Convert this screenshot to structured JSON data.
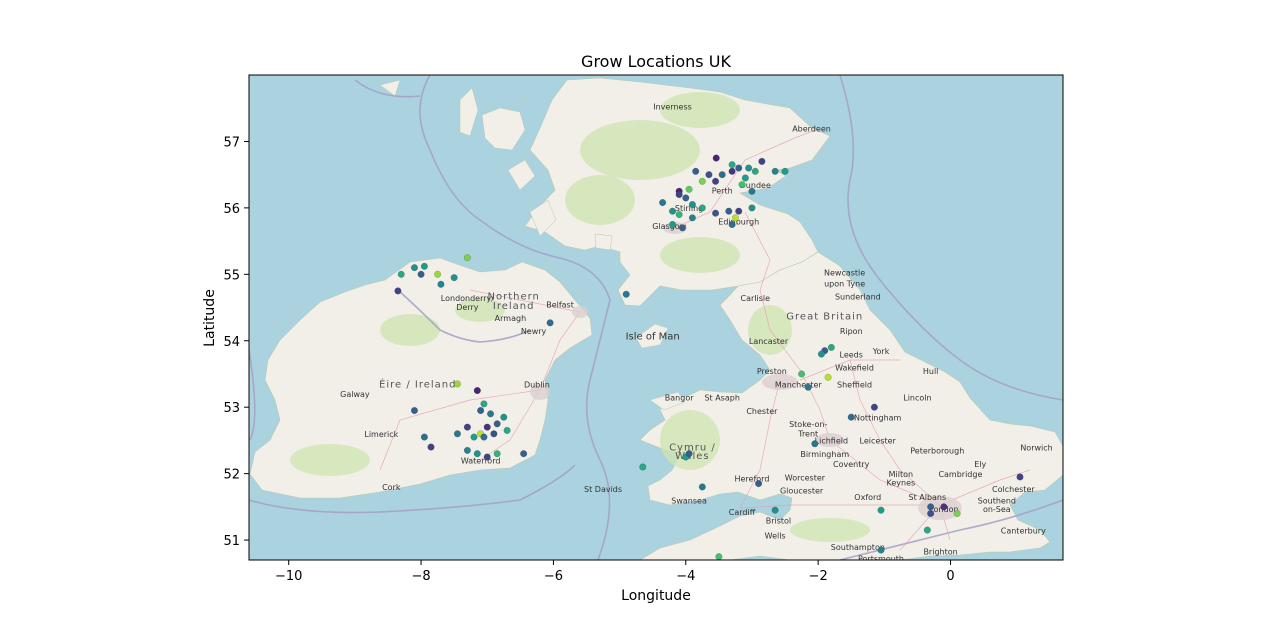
{
  "chart_data": {
    "type": "scatter",
    "title": "Grow Locations UK",
    "xlabel": "Longitude",
    "ylabel": "Latitude",
    "xlim": [
      -10.6,
      1.7
    ],
    "ylim": [
      50.7,
      58.0
    ],
    "xticks": [
      -10,
      -8,
      -6,
      -4,
      -2,
      0
    ],
    "yticks": [
      51,
      52,
      53,
      54,
      55,
      56,
      57
    ],
    "xtick_labels": [
      "−10",
      "−8",
      "−6",
      "−4",
      "−2",
      "0"
    ],
    "ytick_labels": [
      "51",
      "52",
      "53",
      "54",
      "55",
      "56",
      "57"
    ],
    "grid": false,
    "legend": "none",
    "colormap": "viridis",
    "basemap": "OpenStreetMap",
    "points": [
      {
        "x": -3.54,
        "y": 56.75,
        "c": 0.1
      },
      {
        "x": -3.2,
        "y": 56.6,
        "c": 0.3
      },
      {
        "x": -3.05,
        "y": 56.6,
        "c": 0.5
      },
      {
        "x": -2.85,
        "y": 56.7,
        "c": 0.2
      },
      {
        "x": -2.95,
        "y": 56.55,
        "c": 0.6
      },
      {
        "x": -3.3,
        "y": 56.55,
        "c": 0.15
      },
      {
        "x": -3.45,
        "y": 56.5,
        "c": 0.35
      },
      {
        "x": -3.1,
        "y": 56.45,
        "c": 0.55
      },
      {
        "x": -2.65,
        "y": 56.55,
        "c": 0.45
      },
      {
        "x": -3.65,
        "y": 56.5,
        "c": 0.25
      },
      {
        "x": -3.75,
        "y": 56.4,
        "c": 0.8
      },
      {
        "x": -3.55,
        "y": 56.4,
        "c": 0.2
      },
      {
        "x": -3.15,
        "y": 56.35,
        "c": 0.7
      },
      {
        "x": -3.0,
        "y": 56.25,
        "c": 0.4
      },
      {
        "x": -3.3,
        "y": 56.65,
        "c": 0.6
      },
      {
        "x": -3.85,
        "y": 56.55,
        "c": 0.3
      },
      {
        "x": -4.1,
        "y": 56.25,
        "c": 0.1
      },
      {
        "x": -4.1,
        "y": 56.2,
        "c": 0.2
      },
      {
        "x": -4.0,
        "y": 56.15,
        "c": 0.3
      },
      {
        "x": -3.9,
        "y": 56.05,
        "c": 0.5
      },
      {
        "x": -3.75,
        "y": 56.0,
        "c": 0.6
      },
      {
        "x": -3.95,
        "y": 56.28,
        "c": 0.75
      },
      {
        "x": -4.35,
        "y": 56.08,
        "c": 0.4
      },
      {
        "x": -4.2,
        "y": 55.95,
        "c": 0.5
      },
      {
        "x": -4.1,
        "y": 55.9,
        "c": 0.65
      },
      {
        "x": -3.9,
        "y": 55.85,
        "c": 0.45
      },
      {
        "x": -3.55,
        "y": 55.92,
        "c": 0.25
      },
      {
        "x": -3.35,
        "y": 55.95,
        "c": 0.3
      },
      {
        "x": -3.2,
        "y": 55.95,
        "c": 0.2
      },
      {
        "x": -3.25,
        "y": 55.85,
        "c": 0.9
      },
      {
        "x": -3.3,
        "y": 55.75,
        "c": 0.35
      },
      {
        "x": -4.2,
        "y": 55.75,
        "c": 0.55
      },
      {
        "x": -4.05,
        "y": 55.7,
        "c": 0.3
      },
      {
        "x": -3.0,
        "y": 56.0,
        "c": 0.5
      },
      {
        "x": -2.5,
        "y": 56.55,
        "c": 0.55
      },
      {
        "x": -8.3,
        "y": 55.0,
        "c": 0.6
      },
      {
        "x": -8.1,
        "y": 55.1,
        "c": 0.5
      },
      {
        "x": -7.95,
        "y": 55.12,
        "c": 0.55
      },
      {
        "x": -7.75,
        "y": 55.0,
        "c": 0.85
      },
      {
        "x": -8.0,
        "y": 55.0,
        "c": 0.3
      },
      {
        "x": -7.5,
        "y": 54.95,
        "c": 0.5
      },
      {
        "x": -7.7,
        "y": 54.85,
        "c": 0.45
      },
      {
        "x": -8.35,
        "y": 54.75,
        "c": 0.2
      },
      {
        "x": -7.3,
        "y": 55.25,
        "c": 0.8
      },
      {
        "x": -6.05,
        "y": 54.27,
        "c": 0.35
      },
      {
        "x": -4.9,
        "y": 54.7,
        "c": 0.4
      },
      {
        "x": -7.15,
        "y": 53.25,
        "c": 0.1
      },
      {
        "x": -7.05,
        "y": 53.05,
        "c": 0.6
      },
      {
        "x": -7.1,
        "y": 52.95,
        "c": 0.3
      },
      {
        "x": -6.95,
        "y": 52.9,
        "c": 0.4
      },
      {
        "x": -6.75,
        "y": 52.85,
        "c": 0.5
      },
      {
        "x": -6.85,
        "y": 52.75,
        "c": 0.3
      },
      {
        "x": -7.3,
        "y": 52.7,
        "c": 0.2
      },
      {
        "x": -7.1,
        "y": 52.6,
        "c": 0.9
      },
      {
        "x": -7.2,
        "y": 52.55,
        "c": 0.55
      },
      {
        "x": -7.05,
        "y": 52.55,
        "c": 0.35
      },
      {
        "x": -6.9,
        "y": 52.6,
        "c": 0.25
      },
      {
        "x": -6.7,
        "y": 52.65,
        "c": 0.6
      },
      {
        "x": -7.3,
        "y": 52.35,
        "c": 0.45
      },
      {
        "x": -7.15,
        "y": 52.3,
        "c": 0.5
      },
      {
        "x": -7.0,
        "y": 52.25,
        "c": 0.2
      },
      {
        "x": -6.85,
        "y": 52.3,
        "c": 0.65
      },
      {
        "x": -6.45,
        "y": 52.3,
        "c": 0.3
      },
      {
        "x": -7.45,
        "y": 52.6,
        "c": 0.4
      },
      {
        "x": -8.1,
        "y": 52.95,
        "c": 0.3
      },
      {
        "x": -7.95,
        "y": 52.55,
        "c": 0.35
      },
      {
        "x": -7.85,
        "y": 52.4,
        "c": 0.2
      },
      {
        "x": -7.45,
        "y": 53.35,
        "c": 0.85
      },
      {
        "x": -7.0,
        "y": 52.7,
        "c": 0.15
      },
      {
        "x": -1.9,
        "y": 53.85,
        "c": 0.3
      },
      {
        "x": -1.8,
        "y": 53.9,
        "c": 0.6
      },
      {
        "x": -1.95,
        "y": 53.8,
        "c": 0.5
      },
      {
        "x": -1.85,
        "y": 53.45,
        "c": 0.9
      },
      {
        "x": -2.25,
        "y": 53.5,
        "c": 0.7
      },
      {
        "x": -2.15,
        "y": 53.3,
        "c": 0.4
      },
      {
        "x": -1.5,
        "y": 52.85,
        "c": 0.35
      },
      {
        "x": -1.15,
        "y": 53.0,
        "c": 0.2
      },
      {
        "x": -2.05,
        "y": 52.45,
        "c": 0.4
      },
      {
        "x": -3.75,
        "y": 51.8,
        "c": 0.4
      },
      {
        "x": -2.9,
        "y": 51.85,
        "c": 0.3
      },
      {
        "x": -2.65,
        "y": 51.45,
        "c": 0.5
      },
      {
        "x": -4.0,
        "y": 52.25,
        "c": 0.55
      },
      {
        "x": -3.95,
        "y": 52.3,
        "c": 0.3
      },
      {
        "x": -4.65,
        "y": 52.1,
        "c": 0.6
      },
      {
        "x": -3.5,
        "y": 50.75,
        "c": 0.7
      },
      {
        "x": -1.05,
        "y": 51.45,
        "c": 0.55
      },
      {
        "x": -0.3,
        "y": 51.5,
        "c": 0.3
      },
      {
        "x": -0.1,
        "y": 51.5,
        "c": 0.15
      },
      {
        "x": 0.1,
        "y": 51.4,
        "c": 0.8
      },
      {
        "x": -0.3,
        "y": 51.4,
        "c": 0.25
      },
      {
        "x": -0.35,
        "y": 51.15,
        "c": 0.6
      },
      {
        "x": -1.05,
        "y": 50.85,
        "c": 0.45
      },
      {
        "x": 1.05,
        "y": 51.95,
        "c": 0.2
      }
    ]
  },
  "basemap_labels": {
    "cities": [
      {
        "text": "Inverness",
        "lon": -4.2,
        "lat": 57.48
      },
      {
        "text": "Aberdeen",
        "lon": -2.1,
        "lat": 57.15
      },
      {
        "text": "Perth",
        "lon": -3.45,
        "lat": 56.22
      },
      {
        "text": "Dundee",
        "lon": -2.95,
        "lat": 56.3
      },
      {
        "text": "Stirling",
        "lon": -3.95,
        "lat": 55.95
      },
      {
        "text": "Edinburgh",
        "lon": -3.2,
        "lat": 55.75
      },
      {
        "text": "Glasgow",
        "lon": -4.25,
        "lat": 55.68
      },
      {
        "text": "Newcastle",
        "lon": -1.6,
        "lat": 54.98
      },
      {
        "text": "upon Tyne",
        "lon": -1.6,
        "lat": 54.82
      },
      {
        "text": "Sunderland",
        "lon": -1.4,
        "lat": 54.62
      },
      {
        "text": "Carlisle",
        "lon": -2.95,
        "lat": 54.6
      },
      {
        "text": "Londonderry/",
        "lon": -7.3,
        "lat": 54.6
      },
      {
        "text": "Derry",
        "lon": -7.3,
        "lat": 54.46
      },
      {
        "text": "Belfast",
        "lon": -5.9,
        "lat": 54.5
      },
      {
        "text": "Armagh",
        "lon": -6.65,
        "lat": 54.3
      },
      {
        "text": "Newry",
        "lon": -6.3,
        "lat": 54.1
      },
      {
        "text": "Ripon",
        "lon": -1.5,
        "lat": 54.1
      },
      {
        "text": "Lancaster",
        "lon": -2.75,
        "lat": 53.95
      },
      {
        "text": "Leeds",
        "lon": -1.5,
        "lat": 53.75
      },
      {
        "text": "York",
        "lon": -1.05,
        "lat": 53.8
      },
      {
        "text": "Preston",
        "lon": -2.7,
        "lat": 53.5
      },
      {
        "text": "Wakefield",
        "lon": -1.45,
        "lat": 53.55
      },
      {
        "text": "Hull",
        "lon": -0.3,
        "lat": 53.5
      },
      {
        "text": "Dublin",
        "lon": -6.25,
        "lat": 53.3
      },
      {
        "text": "Galway",
        "lon": -9.0,
        "lat": 53.15
      },
      {
        "text": "Manchester",
        "lon": -2.3,
        "lat": 53.3
      },
      {
        "text": "Sheffield",
        "lon": -1.45,
        "lat": 53.3
      },
      {
        "text": "Bangor",
        "lon": -4.1,
        "lat": 53.1
      },
      {
        "text": "St Asaph",
        "lon": -3.45,
        "lat": 53.1
      },
      {
        "text": "Lincoln",
        "lon": -0.5,
        "lat": 53.1
      },
      {
        "text": "Chester",
        "lon": -2.85,
        "lat": 52.9
      },
      {
        "text": "Nottingham",
        "lon": -1.1,
        "lat": 52.8
      },
      {
        "text": "Stoke-on-",
        "lon": -2.15,
        "lat": 52.7
      },
      {
        "text": "Trent",
        "lon": -2.15,
        "lat": 52.56
      },
      {
        "text": "Limerick",
        "lon": -8.6,
        "lat": 52.55
      },
      {
        "text": "Lichfield",
        "lon": -1.8,
        "lat": 52.45
      },
      {
        "text": "Leicester",
        "lon": -1.1,
        "lat": 52.45
      },
      {
        "text": "Birmingham",
        "lon": -1.9,
        "lat": 52.25
      },
      {
        "text": "Peterborough",
        "lon": -0.2,
        "lat": 52.3
      },
      {
        "text": "Norwich",
        "lon": 1.3,
        "lat": 52.35
      },
      {
        "text": "Waterford",
        "lon": -7.1,
        "lat": 52.15
      },
      {
        "text": "Coventry",
        "lon": -1.5,
        "lat": 52.1
      },
      {
        "text": "Ely",
        "lon": 0.45,
        "lat": 52.1
      },
      {
        "text": "Cambridge",
        "lon": 0.15,
        "lat": 51.95
      },
      {
        "text": "Milton",
        "lon": -0.75,
        "lat": 51.95
      },
      {
        "text": "Keynes",
        "lon": -0.75,
        "lat": 51.82
      },
      {
        "text": "Hereford",
        "lon": -3.0,
        "lat": 51.88
      },
      {
        "text": "Worcester",
        "lon": -2.2,
        "lat": 51.9
      },
      {
        "text": "Cork",
        "lon": -8.45,
        "lat": 51.75
      },
      {
        "text": "St Davids",
        "lon": -5.25,
        "lat": 51.72
      },
      {
        "text": "Gloucester",
        "lon": -2.25,
        "lat": 51.7
      },
      {
        "text": "Colchester",
        "lon": 0.95,
        "lat": 51.72
      },
      {
        "text": "Swansea",
        "lon": -3.95,
        "lat": 51.55
      },
      {
        "text": "Oxford",
        "lon": -1.25,
        "lat": 51.6
      },
      {
        "text": "St Albans",
        "lon": -0.35,
        "lat": 51.6
      },
      {
        "text": "Southend",
        "lon": 0.7,
        "lat": 51.55
      },
      {
        "text": "on-Sea",
        "lon": 0.7,
        "lat": 51.42
      },
      {
        "text": "Cardiff",
        "lon": -3.15,
        "lat": 51.38
      },
      {
        "text": "London",
        "lon": -0.1,
        "lat": 51.42
      },
      {
        "text": "Bristol",
        "lon": -2.6,
        "lat": 51.25
      },
      {
        "text": "Canterbury",
        "lon": 1.1,
        "lat": 51.1
      },
      {
        "text": "Wells",
        "lon": -2.65,
        "lat": 51.02
      },
      {
        "text": "Southampton",
        "lon": -1.4,
        "lat": 50.85
      },
      {
        "text": "Brighton",
        "lon": -0.15,
        "lat": 50.78
      },
      {
        "text": "Portsmouth",
        "lon": -1.05,
        "lat": 50.68
      }
    ],
    "countries": [
      {
        "text": "Great Britain",
        "lon": -1.9,
        "lat": 54.32
      },
      {
        "text": "Éire / Ireland",
        "lon": -8.05,
        "lat": 53.3
      },
      {
        "text": "Northern",
        "lon": -6.6,
        "lat": 54.62
      },
      {
        "text": "Ireland",
        "lon": -6.6,
        "lat": 54.48
      },
      {
        "text": "Cymru /",
        "lon": -3.9,
        "lat": 52.35
      },
      {
        "text": "Wales",
        "lon": -3.9,
        "lat": 52.22
      }
    ],
    "water": [
      {
        "text": "Isle of Man",
        "lon": -4.5,
        "lat": 54.02
      }
    ]
  }
}
